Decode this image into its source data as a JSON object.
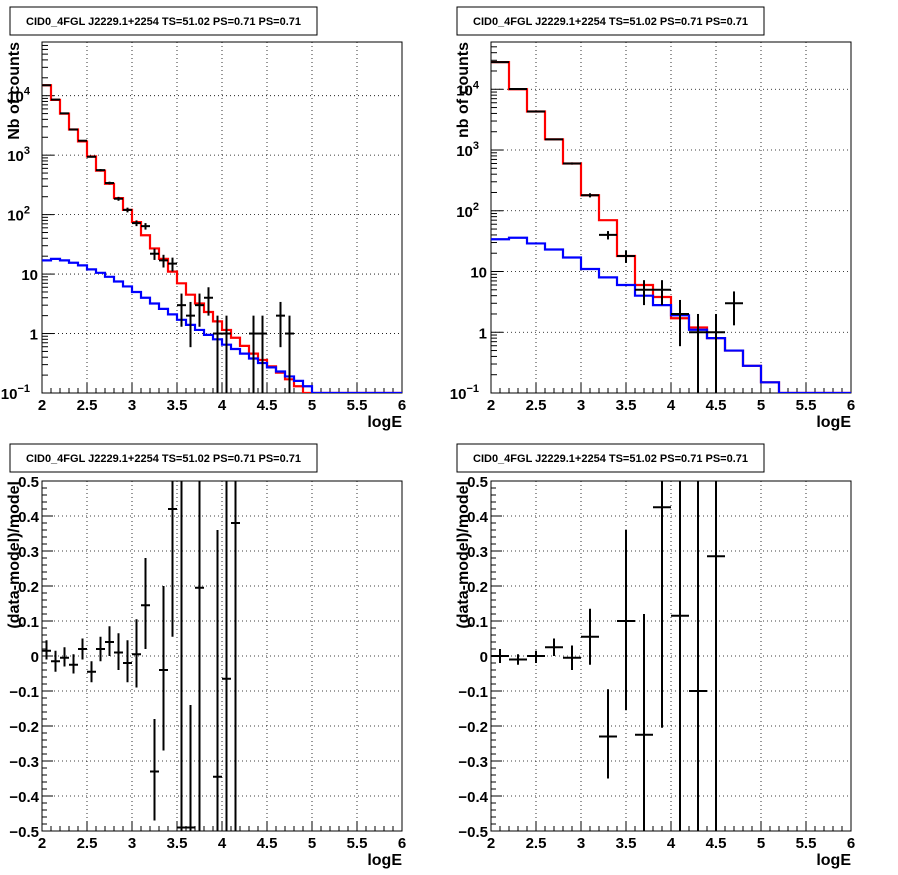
{
  "chart_data": [
    {
      "type": "line",
      "title": "CID0_4FGL J2229.1+2254 TS=51.02 PS=0.71 PS=0.71",
      "xlabel": "logE",
      "ylabel": "Nb of counts",
      "xlim": [
        2,
        6
      ],
      "ylim": [
        0.1,
        80000
      ],
      "yscale": "log",
      "grid": true,
      "x_ticks": [
        "2",
        "2.5",
        "3",
        "3.5",
        "4",
        "4.5",
        "5",
        "5.5",
        "6"
      ],
      "y_ticks": [
        {
          "v": 0.1,
          "label": "10",
          "sup": "−1"
        },
        {
          "v": 1,
          "label": "1",
          "sup": ""
        },
        {
          "v": 10,
          "label": "10",
          "sup": ""
        },
        {
          "v": 100,
          "label": "10",
          "sup": "2"
        },
        {
          "v": 1000,
          "label": "10",
          "sup": "3"
        },
        {
          "v": 10000,
          "label": "10",
          "sup": "4"
        }
      ],
      "series": [
        {
          "color": "#ff0000",
          "style": "step",
          "bin_edges": [
            2.0,
            2.1,
            2.2,
            2.3,
            2.4,
            2.5,
            2.6,
            2.7,
            2.8,
            2.9,
            3.0,
            3.1,
            3.2,
            3.3,
            3.4,
            3.5,
            3.6,
            3.7,
            3.8,
            3.9,
            4.0,
            4.1,
            4.2,
            4.3,
            4.4,
            4.5,
            4.6,
            4.7,
            4.8,
            4.9,
            5.0,
            5.1,
            5.2,
            5.3,
            5.4,
            5.5,
            5.6,
            5.7,
            5.8,
            5.9,
            6.0
          ],
          "values": [
            15000,
            8500,
            5000,
            2700,
            1700,
            950,
            550,
            330,
            190,
            120,
            75,
            45,
            27,
            18,
            11,
            7,
            4.5,
            3.2,
            2.3,
            1.6,
            1.15,
            0.85,
            0.62,
            0.46,
            0.36,
            0.28,
            0.22,
            0.17,
            0.13,
            0.1,
            0.1,
            0.1,
            0.1,
            0.1,
            0.1,
            0.1,
            0.1,
            0.1,
            0.1,
            0.1
          ]
        },
        {
          "color": "#0000ff",
          "style": "step",
          "bin_edges": [
            2.0,
            2.1,
            2.2,
            2.3,
            2.4,
            2.5,
            2.6,
            2.7,
            2.8,
            2.9,
            3.0,
            3.1,
            3.2,
            3.3,
            3.4,
            3.5,
            3.6,
            3.7,
            3.8,
            3.9,
            4.0,
            4.1,
            4.2,
            4.3,
            4.4,
            4.5,
            4.6,
            4.7,
            4.8,
            4.9,
            5.0,
            5.1,
            5.2,
            5.3,
            5.4,
            5.5,
            5.6,
            5.7,
            5.8,
            5.9,
            6.0
          ],
          "values": [
            17,
            18,
            17,
            15.5,
            14,
            12,
            10.5,
            9,
            7.5,
            6.2,
            5,
            4,
            3.2,
            2.6,
            2.1,
            1.7,
            1.4,
            1.15,
            0.95,
            0.8,
            0.65,
            0.55,
            0.46,
            0.38,
            0.32,
            0.27,
            0.23,
            0.19,
            0.16,
            0.13,
            0.1,
            0.1,
            0.1,
            0.1,
            0.1,
            0.1,
            0.1,
            0.1,
            0.1,
            0.1
          ]
        },
        {
          "color": "#000000",
          "style": "errorbar",
          "points": [
            {
              "x": 2.05,
              "y": 15000,
              "lo": 14880,
              "hi": 15120,
              "xw": 0.05
            },
            {
              "x": 2.15,
              "y": 8600,
              "lo": 8510,
              "hi": 8690,
              "xw": 0.05
            },
            {
              "x": 2.25,
              "y": 5050,
              "lo": 4980,
              "hi": 5120,
              "xw": 0.05
            },
            {
              "x": 2.35,
              "y": 2700,
              "lo": 2650,
              "hi": 2750,
              "xw": 0.05
            },
            {
              "x": 2.45,
              "y": 1750,
              "lo": 1710,
              "hi": 1790,
              "xw": 0.05
            },
            {
              "x": 2.55,
              "y": 940,
              "lo": 910,
              "hi": 970,
              "xw": 0.05
            },
            {
              "x": 2.65,
              "y": 560,
              "lo": 536,
              "hi": 584,
              "xw": 0.05
            },
            {
              "x": 2.75,
              "y": 340,
              "lo": 322,
              "hi": 358,
              "xw": 0.05
            },
            {
              "x": 2.85,
              "y": 185,
              "lo": 171,
              "hi": 199,
              "xw": 0.05
            },
            {
              "x": 2.95,
              "y": 120,
              "lo": 109,
              "hi": 131,
              "xw": 0.05
            },
            {
              "x": 3.05,
              "y": 72,
              "lo": 64,
              "hi": 80,
              "xw": 0.05
            },
            {
              "x": 3.15,
              "y": 64,
              "lo": 56,
              "hi": 72,
              "xw": 0.05
            },
            {
              "x": 3.25,
              "y": 22,
              "lo": 17.3,
              "hi": 26.7,
              "xw": 0.05
            },
            {
              "x": 3.35,
              "y": 17,
              "lo": 12.9,
              "hi": 21.1,
              "xw": 0.05
            },
            {
              "x": 3.45,
              "y": 15,
              "lo": 11.1,
              "hi": 18.9,
              "xw": 0.05
            },
            {
              "x": 3.55,
              "y": 3,
              "lo": 1.3,
              "hi": 4.7,
              "xw": 0.05
            },
            {
              "x": 3.65,
              "y": 2,
              "lo": 0.59,
              "hi": 3.4,
              "xw": 0.05
            },
            {
              "x": 3.75,
              "y": 3,
              "lo": 1.3,
              "hi": 4.7,
              "xw": 0.05
            },
            {
              "x": 3.85,
              "y": 4,
              "lo": 2.0,
              "hi": 6.0,
              "xw": 0.05
            },
            {
              "x": 3.95,
              "y": 1,
              "lo": 0.1,
              "hi": 2.0,
              "xw": 0.05
            },
            {
              "x": 4.05,
              "y": 1,
              "lo": 0.1,
              "hi": 2.0,
              "xw": 0.05
            },
            {
              "x": 4.35,
              "y": 1,
              "lo": 0.1,
              "hi": 2.0,
              "xw": 0.05
            },
            {
              "x": 4.45,
              "y": 1,
              "lo": 0.1,
              "hi": 2.0,
              "xw": 0.05
            },
            {
              "x": 4.65,
              "y": 2,
              "lo": 0.59,
              "hi": 3.4,
              "xw": 0.05
            },
            {
              "x": 4.75,
              "y": 1,
              "lo": 0.1,
              "hi": 2.0,
              "xw": 0.05
            }
          ]
        }
      ]
    },
    {
      "type": "line",
      "title": "CID0_4FGL J2229.1+2254 TS=51.02 PS=0.71 PS=0.71",
      "xlabel": "logE",
      "ylabel": "nb of counts",
      "xlim": [
        2,
        6
      ],
      "ylim": [
        0.1,
        60000
      ],
      "yscale": "log",
      "grid": true,
      "x_ticks": [
        "2",
        "2.5",
        "3",
        "3.5",
        "4",
        "4.5",
        "5",
        "5.5",
        "6"
      ],
      "y_ticks": [
        {
          "v": 0.1,
          "label": "10",
          "sup": "−1"
        },
        {
          "v": 1,
          "label": "1",
          "sup": ""
        },
        {
          "v": 10,
          "label": "10",
          "sup": ""
        },
        {
          "v": 100,
          "label": "10",
          "sup": "2"
        },
        {
          "v": 1000,
          "label": "10",
          "sup": "3"
        },
        {
          "v": 10000,
          "label": "10",
          "sup": "4"
        }
      ],
      "series": [
        {
          "color": "#ff0000",
          "style": "step",
          "bin_edges": [
            2.0,
            2.2,
            2.4,
            2.6,
            2.8,
            3.0,
            3.2,
            3.4,
            3.6,
            3.8,
            4.0,
            4.2,
            4.4,
            4.6,
            4.8,
            5.0,
            5.2,
            5.4,
            5.6,
            5.8,
            6.0
          ],
          "values": [
            28000,
            10000,
            4300,
            1500,
            600,
            180,
            70,
            18,
            6,
            3.8,
            1.7,
            1.2,
            0.8,
            0.5,
            0.28,
            0.15,
            0.1,
            0.1,
            0.1,
            0.1
          ]
        },
        {
          "color": "#0000ff",
          "style": "step",
          "bin_edges": [
            2.0,
            2.2,
            2.4,
            2.6,
            2.8,
            3.0,
            3.2,
            3.4,
            3.6,
            3.8,
            4.0,
            4.2,
            4.4,
            4.6,
            4.8,
            5.0,
            5.2,
            5.4,
            5.6,
            5.8,
            6.0
          ],
          "values": [
            34,
            36,
            29,
            23,
            17,
            11,
            8,
            6,
            4,
            2.8,
            1.9,
            1.1,
            0.8,
            0.5,
            0.28,
            0.15,
            0.1,
            0.1,
            0.1,
            0.1
          ]
        },
        {
          "color": "#000000",
          "style": "errorbar",
          "points": [
            {
              "x": 2.1,
              "y": 28000,
              "lo": 27830,
              "hi": 28170,
              "xw": 0.1
            },
            {
              "x": 2.3,
              "y": 10100,
              "lo": 10000,
              "hi": 10200,
              "xw": 0.1
            },
            {
              "x": 2.5,
              "y": 4300,
              "lo": 4235,
              "hi": 4365,
              "xw": 0.1
            },
            {
              "x": 2.7,
              "y": 1500,
              "lo": 1460,
              "hi": 1540,
              "xw": 0.1
            },
            {
              "x": 2.9,
              "y": 600,
              "lo": 575,
              "hi": 625,
              "xw": 0.1
            },
            {
              "x": 3.1,
              "y": 180,
              "lo": 166,
              "hi": 194,
              "xw": 0.1
            },
            {
              "x": 3.3,
              "y": 40,
              "lo": 33.7,
              "hi": 46.3,
              "xw": 0.1
            },
            {
              "x": 3.5,
              "y": 18,
              "lo": 13.8,
              "hi": 22.2,
              "xw": 0.1
            },
            {
              "x": 3.7,
              "y": 5,
              "lo": 2.8,
              "hi": 7.2,
              "xw": 0.1
            },
            {
              "x": 3.9,
              "y": 5,
              "lo": 2.8,
              "hi": 7.2,
              "xw": 0.1
            },
            {
              "x": 4.1,
              "y": 2,
              "lo": 0.59,
              "hi": 3.4,
              "xw": 0.1
            },
            {
              "x": 4.3,
              "y": 1,
              "lo": 0.1,
              "hi": 2.0,
              "xw": 0.1
            },
            {
              "x": 4.5,
              "y": 1,
              "lo": 0.1,
              "hi": 2.0,
              "xw": 0.1
            },
            {
              "x": 4.7,
              "y": 3,
              "lo": 1.3,
              "hi": 4.7,
              "xw": 0.1
            }
          ]
        }
      ]
    },
    {
      "type": "scatter",
      "title": "CID0_4FGL J2229.1+2254 TS=51.02 PS=0.71 PS=0.71",
      "xlabel": "logE",
      "ylabel": "(data-model)/model",
      "xlim": [
        2,
        6
      ],
      "ylim": [
        -0.5,
        0.5
      ],
      "yscale": "linear",
      "grid": true,
      "x_ticks": [
        "2",
        "2.5",
        "3",
        "3.5",
        "4",
        "4.5",
        "5",
        "5.5",
        "6"
      ],
      "y_ticks": [
        "−0.5",
        "−0.4",
        "−0.3",
        "−0.2",
        "−0.1",
        "0",
        "0.1",
        "0.2",
        "0.3",
        "0.4",
        "0.5"
      ],
      "series": [
        {
          "color": "#000000",
          "style": "errorbar",
          "points": [
            {
              "x": 2.05,
              "y": 0.015,
              "lo": -0.01,
              "hi": 0.045,
              "xw": 0.05
            },
            {
              "x": 2.15,
              "y": -0.015,
              "lo": -0.045,
              "hi": 0.015,
              "xw": 0.05
            },
            {
              "x": 2.25,
              "y": -0.005,
              "lo": -0.03,
              "hi": 0.025,
              "xw": 0.05
            },
            {
              "x": 2.35,
              "y": -0.025,
              "lo": -0.05,
              "hi": 0.005,
              "xw": 0.05
            },
            {
              "x": 2.45,
              "y": 0.02,
              "lo": -0.01,
              "hi": 0.05,
              "xw": 0.05
            },
            {
              "x": 2.55,
              "y": -0.045,
              "lo": -0.075,
              "hi": -0.015,
              "xw": 0.05
            },
            {
              "x": 2.65,
              "y": 0.02,
              "lo": -0.015,
              "hi": 0.055,
              "xw": 0.05
            },
            {
              "x": 2.75,
              "y": 0.04,
              "lo": 0.0,
              "hi": 0.085,
              "xw": 0.05
            },
            {
              "x": 2.85,
              "y": 0.01,
              "lo": -0.04,
              "hi": 0.065,
              "xw": 0.05
            },
            {
              "x": 2.95,
              "y": -0.02,
              "lo": -0.075,
              "hi": 0.045,
              "xw": 0.05
            },
            {
              "x": 3.05,
              "y": 0.005,
              "lo": -0.09,
              "hi": 0.105,
              "xw": 0.05
            },
            {
              "x": 3.15,
              "y": 0.145,
              "lo": 0.02,
              "hi": 0.28,
              "xw": 0.05
            },
            {
              "x": 3.25,
              "y": -0.33,
              "lo": -0.47,
              "hi": -0.18,
              "xw": 0.05
            },
            {
              "x": 3.35,
              "y": -0.04,
              "lo": -0.27,
              "hi": 0.2,
              "xw": 0.05
            },
            {
              "x": 3.45,
              "y": 0.42,
              "lo": 0.055,
              "hi": 0.5,
              "xw": 0.05
            },
            {
              "x": 3.55,
              "y": -0.49,
              "lo": -0.5,
              "hi": 0.5,
              "xw": 0.05
            },
            {
              "x": 3.65,
              "y": -0.49,
              "lo": -0.5,
              "hi": -0.14,
              "xw": 0.05
            },
            {
              "x": 3.75,
              "y": 0.195,
              "lo": -0.5,
              "hi": 0.5,
              "xw": 0.05
            },
            {
              "x": 3.95,
              "y": -0.345,
              "lo": -0.5,
              "hi": 0.36,
              "xw": 0.05
            },
            {
              "x": 4.05,
              "y": -0.065,
              "lo": -0.5,
              "hi": 0.5,
              "xw": 0.05
            },
            {
              "x": 4.15,
              "y": 0.38,
              "lo": -0.5,
              "hi": 0.5,
              "xw": 0.05
            }
          ]
        }
      ]
    },
    {
      "type": "scatter",
      "title": "CID0_4FGL J2229.1+2254 TS=51.02 PS=0.71 PS=0.71",
      "xlabel": "logE",
      "ylabel": "(data-model)/model",
      "xlim": [
        2,
        6
      ],
      "ylim": [
        -0.5,
        0.5
      ],
      "yscale": "linear",
      "grid": true,
      "x_ticks": [
        "2",
        "2.5",
        "3",
        "3.5",
        "4",
        "4.5",
        "5",
        "5.5",
        "6"
      ],
      "y_ticks": [
        "−0.5",
        "−0.4",
        "−0.3",
        "−0.2",
        "−0.1",
        "0",
        "0.1",
        "0.2",
        "0.3",
        "0.4",
        "0.5"
      ],
      "series": [
        {
          "color": "#000000",
          "style": "errorbar",
          "points": [
            {
              "x": 2.1,
              "y": 0.0,
              "lo": -0.02,
              "hi": 0.02,
              "xw": 0.1
            },
            {
              "x": 2.3,
              "y": -0.01,
              "lo": -0.025,
              "hi": 0.005,
              "xw": 0.1
            },
            {
              "x": 2.5,
              "y": 0.0,
              "lo": -0.02,
              "hi": 0.015,
              "xw": 0.1
            },
            {
              "x": 2.7,
              "y": 0.025,
              "lo": 0.0,
              "hi": 0.05,
              "xw": 0.1
            },
            {
              "x": 2.9,
              "y": -0.005,
              "lo": -0.04,
              "hi": 0.03,
              "xw": 0.1
            },
            {
              "x": 3.1,
              "y": 0.055,
              "lo": -0.025,
              "hi": 0.135,
              "xw": 0.1
            },
            {
              "x": 3.3,
              "y": -0.23,
              "lo": -0.35,
              "hi": -0.095,
              "xw": 0.1
            },
            {
              "x": 3.5,
              "y": 0.1,
              "lo": -0.155,
              "hi": 0.36,
              "xw": 0.1
            },
            {
              "x": 3.7,
              "y": -0.225,
              "lo": -0.5,
              "hi": 0.12,
              "xw": 0.1
            },
            {
              "x": 3.9,
              "y": 0.425,
              "lo": -0.205,
              "hi": 0.5,
              "xw": 0.1
            },
            {
              "x": 4.1,
              "y": 0.115,
              "lo": -0.5,
              "hi": 0.5,
              "xw": 0.1
            },
            {
              "x": 4.3,
              "y": -0.1,
              "lo": -0.5,
              "hi": 0.5,
              "xw": 0.1
            },
            {
              "x": 4.5,
              "y": 0.285,
              "lo": -0.5,
              "hi": 0.5,
              "xw": 0.1
            }
          ]
        }
      ]
    }
  ]
}
